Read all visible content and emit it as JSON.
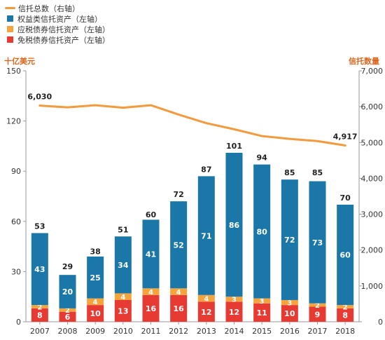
{
  "legend": {
    "line_label": "信托总数（右轴）",
    "equity_label": "权益类信托资产（左轴）",
    "taxable_label": "应税债券信托资产（左轴）",
    "taxexempt_label": "免税债券信托资产（左轴）"
  },
  "axes": {
    "left_title": "十亿美元",
    "right_title": "信托数量"
  },
  "colors": {
    "line": "#f39a3d",
    "equity": "#1a77a8",
    "taxable": "#f5a33c",
    "taxexempt": "#e73a33",
    "axis_title": "#d9661c"
  },
  "chart_data": {
    "type": "bar",
    "stacked": true,
    "categories": [
      "2007",
      "2008",
      "2009",
      "2010",
      "2011",
      "2012",
      "2013",
      "2014",
      "2015",
      "2016",
      "2017",
      "2018"
    ],
    "series": [
      {
        "name": "免税债券信托资产（左轴）",
        "values": [
          8,
          6,
          10,
          13,
          16,
          16,
          12,
          12,
          11,
          10,
          9,
          8
        ]
      },
      {
        "name": "应税债券信托资产（左轴）",
        "values": [
          2,
          2,
          4,
          4,
          4,
          4,
          4,
          3,
          3,
          3,
          2,
          2
        ]
      },
      {
        "name": "权益类信托资产（左轴）",
        "values": [
          43,
          20,
          25,
          34,
          41,
          52,
          71,
          86,
          80,
          72,
          73,
          60
        ]
      }
    ],
    "totals": [
      53,
      29,
      38,
      51,
      60,
      72,
      87,
      101,
      94,
      85,
      85,
      70
    ],
    "line": {
      "name": "信托总数（右轴）",
      "axis": "right",
      "values": [
        6030,
        5980,
        6040,
        5970,
        6040,
        5780,
        5540,
        5370,
        5180,
        5100,
        5040,
        4917
      ],
      "labels": [
        {
          "index": 0,
          "text": "6,030"
        },
        {
          "index": 11,
          "text": "4,917"
        }
      ]
    },
    "ylim_left": [
      0,
      150
    ],
    "yticks_left": [
      "0",
      "30",
      "60",
      "90",
      "120",
      "150"
    ],
    "ylim_right": [
      0,
      7000
    ],
    "yticks_right": [
      "0",
      "1,000",
      "2,000",
      "3,000",
      "4,000",
      "5,000",
      "6,000",
      "7,000"
    ],
    "grid": false,
    "legend_position": "top-left"
  }
}
